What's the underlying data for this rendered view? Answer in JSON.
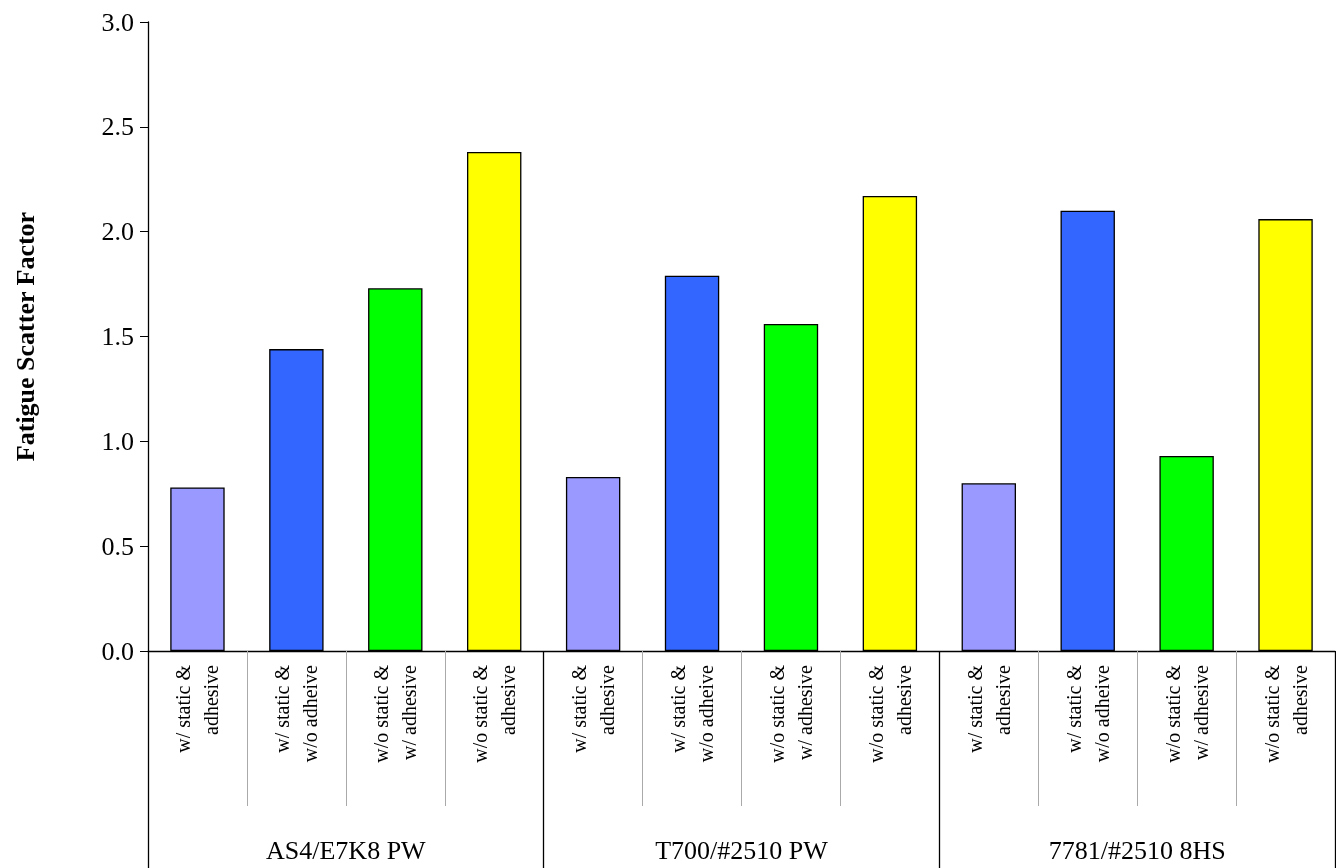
{
  "chart_data": {
    "type": "bar",
    "ylabel": "Fatigue Scatter Factor",
    "categories": [
      "w/ static &\nadhesive",
      "w/ static &\nw/o adheive",
      "w/o static &\nw/ adhesive",
      "w/o static &\nadhesive",
      "w/ static &\nadhesive",
      "w/ static &\nw/o adheive",
      "w/o static &\nw/ adhesive",
      "w/o static &\nadhesive",
      "w/ static &\nadhesive",
      "w/ static &\nw/o adheive",
      "w/o static &\nw/ adhesive",
      "w/o static &\nadhesive"
    ],
    "values": [
      0.78,
      1.44,
      1.73,
      2.38,
      0.83,
      1.79,
      1.56,
      2.17,
      0.8,
      2.1,
      0.93,
      2.06
    ],
    "colors": [
      "#9999ff",
      "#3366ff",
      "#00ff00",
      "#ffff00",
      "#9999ff",
      "#3366ff",
      "#00ff00",
      "#ffff00",
      "#9999ff",
      "#3366ff",
      "#00ff00",
      "#ffff00"
    ],
    "ylim": [
      0,
      3
    ],
    "yticks": [
      {
        "value": 0,
        "label": "0.0"
      },
      {
        "value": 0.5,
        "label": "0.5"
      },
      {
        "value": 1,
        "label": "1.0"
      },
      {
        "value": 1.5,
        "label": "1.5"
      },
      {
        "value": 2,
        "label": "2.0"
      },
      {
        "value": 2.5,
        "label": "2.5"
      },
      {
        "value": 3,
        "label": "3.0"
      }
    ],
    "annotations": [
      "AS4/E7K8 PW",
      "T700/#2510 PW",
      "7781/#2510 8HS"
    ]
  }
}
